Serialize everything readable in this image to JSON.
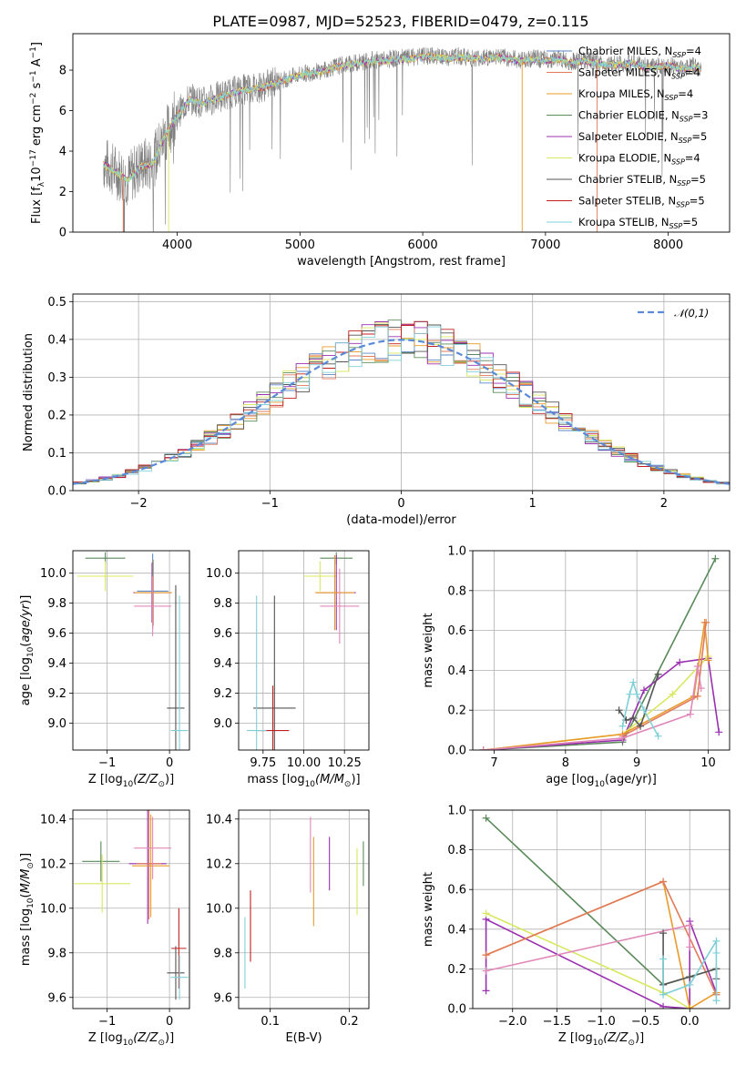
{
  "title": "PLATE=0987, MJD=52523, FIBERID=0479, z=0.115",
  "colors": {
    "chabrier_miles": "#5a8ac8",
    "salpeter_miles": "#e07a5a",
    "kroupa_miles": "#e89a2a",
    "chabrier_elodie": "#5a8a5a",
    "salpeter_elodie": "#9a30b0",
    "kroupa_elodie": "#d8e860",
    "chabrier_stelib": "#555555",
    "salpeter_stelib": "#c02020",
    "kroupa_stelib": "#80d0d8",
    "observed": "#808080",
    "gaussian": "#5a8ad8",
    "pink": "#e088b8",
    "green": "#5a8a5a"
  },
  "chart_data": [
    {
      "type": "line",
      "title": "PLATE=0987, MJD=52523, FIBERID=0479, z=0.115",
      "xlabel": "wavelength [Angstrom, rest frame]",
      "ylabel": "Flux [f_λ 10⁻¹⁷ erg cm⁻² s⁻¹ A⁻¹]",
      "xlim": [
        3150,
        8500
      ],
      "ylim": [
        0,
        9.8
      ],
      "xticks": [
        "4000",
        "5000",
        "6000",
        "7000",
        "8000"
      ],
      "yticks": [
        "0",
        "2",
        "4",
        "6",
        "8"
      ],
      "grid": false,
      "legend_position": "right",
      "legend": [
        {
          "name": "Chabrier MILES, N_SSP=4",
          "main": "Chabrier MILES, N",
          "sub": "SSP",
          "tail": "=4",
          "color": "chabrier_miles"
        },
        {
          "name": "Salpeter MILES, N_SSP=4",
          "main": "Salpeter MILES, N",
          "sub": "SSP",
          "tail": "=4",
          "color": "salpeter_miles"
        },
        {
          "name": "Kroupa MILES, N_SSP=4",
          "main": "Kroupa MILES, N",
          "sub": "SSP",
          "tail": "=4",
          "color": "kroupa_miles"
        },
        {
          "name": "Chabrier ELODIE, N_SSP=3",
          "main": "Chabrier ELODIE, N",
          "sub": "SSP",
          "tail": "=3",
          "color": "chabrier_elodie"
        },
        {
          "name": "Salpeter ELODIE, N_SSP=5",
          "main": "Salpeter ELODIE, N",
          "sub": "SSP",
          "tail": "=5",
          "color": "salpeter_elodie"
        },
        {
          "name": "Kroupa ELODIE, N_SSP=4",
          "main": "Kroupa ELODIE, N",
          "sub": "SSP",
          "tail": "=4",
          "color": "kroupa_elodie"
        },
        {
          "name": "Chabrier STELIB, N_SSP=5",
          "main": "Chabrier STELIB, N",
          "sub": "SSP",
          "tail": "=5",
          "color": "chabrier_stelib"
        },
        {
          "name": "Salpeter STELIB, N_SSP=5",
          "main": "Salpeter STELIB, N",
          "sub": "SSP",
          "tail": "=5",
          "color": "salpeter_stelib"
        },
        {
          "name": "Kroupa STELIB, N_SSP=5",
          "main": "Kroupa STELIB, N",
          "sub": "SSP",
          "tail": "=5",
          "color": "kroupa_stelib"
        }
      ],
      "observed_spectrum": {
        "x": [
          3400,
          3500,
          3600,
          3700,
          3800,
          3900,
          4000,
          4100,
          4200,
          4300,
          4400,
          4500,
          4600,
          4700,
          4800,
          4900,
          5000,
          5100,
          5200,
          5300,
          5400,
          5500,
          5600,
          5700,
          5800,
          5900,
          6000,
          6100,
          6200,
          6300,
          6400,
          6500,
          6600,
          6700,
          6800,
          6900,
          7000,
          7100,
          7200,
          7300,
          7400,
          7500,
          7600,
          7700,
          7800,
          7900,
          8000,
          8100,
          8200,
          8270
        ],
        "y": [
          3.4,
          3.0,
          2.6,
          3.3,
          3.4,
          4.8,
          5.8,
          6.6,
          6.4,
          6.6,
          6.8,
          7.0,
          7.1,
          7.2,
          7.4,
          7.6,
          7.8,
          7.9,
          8.0,
          8.2,
          8.3,
          8.4,
          8.5,
          8.5,
          8.6,
          8.6,
          8.7,
          8.7,
          8.6,
          8.7,
          8.6,
          8.6,
          8.7,
          8.6,
          8.5,
          8.6,
          8.5,
          8.6,
          8.4,
          8.5,
          8.4,
          8.3,
          8.3,
          8.4,
          8.2,
          8.2,
          8.3,
          8.1,
          8.2,
          8.1
        ]
      }
    },
    {
      "type": "line",
      "xlabel": "(data-model)/error",
      "ylabel": "Normed distribution",
      "xlim": [
        -2.5,
        2.5
      ],
      "ylim": [
        0,
        0.52
      ],
      "xticks": [
        "−2",
        "−1",
        "0",
        "1",
        "2"
      ],
      "yticks": [
        "0.0",
        "0.1",
        "0.2",
        "0.3",
        "0.4",
        "0.5"
      ],
      "grid": true,
      "legend_position": "top-right",
      "legend": [
        {
          "name": "𝒩(0,1)",
          "color": "gaussian"
        }
      ],
      "bin_width": 0.1
    },
    {
      "type": "scatter",
      "xlabel_main": "Z [log",
      "xlabel_sub": "10",
      "xlabel_tail": "(Z/Z",
      "xlabel_sun": "⊙",
      "xlabel_end": ")]",
      "ylabel": "age [log₁₀(age/yr)]",
      "xlim": [
        -1.55,
        0.32
      ],
      "ylim": [
        8.82,
        10.15
      ],
      "xticks": [
        "−1",
        "0"
      ],
      "yticks": [
        "9.0",
        "9.2",
        "9.4",
        "9.6",
        "9.8",
        "10.0"
      ],
      "grid": true,
      "points": [
        {
          "x": -1.03,
          "y": 10.1,
          "xerr": 0.32,
          "yerr": 0.04,
          "color": "chabrier_elodie"
        },
        {
          "x": -1.03,
          "y": 9.98,
          "xerr": 0.45,
          "yerr": 0.1,
          "color": "kroupa_elodie"
        },
        {
          "x": -0.28,
          "y": 9.87,
          "xerr": 0.3,
          "yerr": 0.2,
          "color": "salpeter_elodie"
        },
        {
          "x": -0.26,
          "y": 9.87,
          "xerr": 0.3,
          "yerr": 0.22,
          "color": "kroupa_miles"
        },
        {
          "x": -0.27,
          "y": 9.88,
          "xerr": 0.25,
          "yerr": 0.25,
          "color": "chabrier_miles"
        },
        {
          "x": -0.27,
          "y": 9.78,
          "xerr": 0.3,
          "yerr": 0.2,
          "color": "pink"
        },
        {
          "x": 0.1,
          "y": 9.1,
          "xerr": 0.14,
          "yerr": 0.82,
          "color": "chabrier_stelib"
        },
        {
          "x": 0.16,
          "y": 8.95,
          "xerr": 0.14,
          "yerr": 0.9,
          "color": "kroupa_stelib"
        }
      ]
    },
    {
      "type": "scatter",
      "xlabel_main": "mass [log",
      "xlabel_sub": "10",
      "xlabel_tail": "(M/M",
      "xlabel_sun": "⊙",
      "xlabel_end": ")]",
      "xlim": [
        9.6,
        10.4
      ],
      "ylim": [
        8.82,
        10.15
      ],
      "xticks": [
        "9.75",
        "10.00",
        "10.25"
      ],
      "yticks": [
        "9.0",
        "9.2",
        "9.4",
        "9.6",
        "9.8",
        "10.0"
      ],
      "grid": true,
      "points": [
        {
          "x": 10.2,
          "y": 10.1,
          "xerr": 0.1,
          "yerr": 0.04,
          "color": "chabrier_elodie"
        },
        {
          "x": 10.1,
          "y": 9.98,
          "xerr": 0.1,
          "yerr": 0.1,
          "color": "kroupa_elodie"
        },
        {
          "x": 10.2,
          "y": 9.87,
          "xerr": 0.12,
          "yerr": 0.25,
          "color": "salpeter_elodie"
        },
        {
          "x": 10.19,
          "y": 9.87,
          "xerr": 0.12,
          "yerr": 0.25,
          "color": "kroupa_miles"
        },
        {
          "x": 10.22,
          "y": 9.78,
          "xerr": 0.12,
          "yerr": 0.25,
          "color": "pink"
        },
        {
          "x": 9.82,
          "y": 9.1,
          "xerr": 0.13,
          "yerr": 0.75,
          "color": "chabrier_stelib"
        },
        {
          "x": 9.81,
          "y": 8.95,
          "xerr": 0.1,
          "yerr": 0.3,
          "color": "salpeter_stelib"
        },
        {
          "x": 9.71,
          "y": 8.95,
          "xerr": 0.06,
          "yerr": 0.9,
          "color": "kroupa_stelib"
        }
      ]
    },
    {
      "type": "line",
      "xlabel_main": "age  [log",
      "xlabel_sub": "10",
      "xlabel_tail": "(age/yr)]",
      "ylabel": "mass weight",
      "xlim": [
        6.7,
        10.3
      ],
      "ylim": [
        0,
        1.0
      ],
      "xticks": [
        "7",
        "8",
        "9",
        "10"
      ],
      "yticks": [
        "0.0",
        "0.2",
        "0.4",
        "0.6",
        "0.8",
        "1.0"
      ],
      "grid": true,
      "series": [
        {
          "color": "chabrier_elodie",
          "x": [
            6.85,
            8.8,
            10.1
          ],
          "y": [
            0.0,
            0.04,
            0.96
          ]
        },
        {
          "color": "salpeter_elodie",
          "x": [
            6.85,
            8.8,
            9.1,
            9.6,
            10.0,
            10.15
          ],
          "y": [
            0.0,
            0.05,
            0.3,
            0.44,
            0.46,
            0.09
          ]
        },
        {
          "color": "kroupa_elodie",
          "x": [
            6.85,
            8.8,
            9.5,
            10.0
          ],
          "y": [
            0.0,
            0.08,
            0.28,
            0.47
          ]
        },
        {
          "color": "kroupa_miles",
          "x": [
            6.85,
            8.8,
            9.8,
            9.95,
            10.0
          ],
          "y": [
            0.0,
            0.08,
            0.27,
            0.64,
            0.45
          ]
        },
        {
          "color": "salpeter_miles",
          "x": [
            8.8,
            9.85,
            9.97
          ],
          "y": [
            0.07,
            0.27,
            0.64
          ]
        },
        {
          "color": "pink",
          "x": [
            6.85,
            8.8,
            9.75,
            9.85,
            9.9
          ],
          "y": [
            0.0,
            0.06,
            0.18,
            0.42,
            0.31
          ]
        },
        {
          "color": "chabrier_stelib",
          "x": [
            8.75,
            8.85,
            8.95,
            9.05,
            9.3
          ],
          "y": [
            0.2,
            0.15,
            0.16,
            0.12,
            0.38
          ]
        },
        {
          "color": "kroupa_stelib",
          "x": [
            8.8,
            8.9,
            8.95,
            9.0,
            9.1,
            9.3
          ],
          "y": [
            0.12,
            0.28,
            0.34,
            0.28,
            0.2,
            0.07
          ]
        }
      ]
    },
    {
      "type": "scatter",
      "xlabel_main": "Z [log",
      "xlabel_sub": "10",
      "xlabel_tail": "(Z/Z",
      "xlabel_sun": "⊙",
      "xlabel_end": ")]",
      "ylabel": "mass [log₁₀(M/M⊙)]",
      "xlim": [
        -1.55,
        0.32
      ],
      "ylim": [
        9.55,
        10.44
      ],
      "xticks": [
        "−1",
        "0"
      ],
      "yticks": [
        "9.6",
        "9.8",
        "10.0",
        "10.2",
        "10.4"
      ],
      "grid": true,
      "points": [
        {
          "x": -1.1,
          "y": 10.21,
          "xerr": 0.3,
          "yerr": 0.09,
          "color": "chabrier_elodie"
        },
        {
          "x": -1.08,
          "y": 10.11,
          "xerr": 0.45,
          "yerr": 0.13,
          "color": "kroupa_elodie"
        },
        {
          "x": -0.35,
          "y": 10.2,
          "xerr": 0.3,
          "yerr": 0.27,
          "color": "salpeter_elodie"
        },
        {
          "x": -0.3,
          "y": 10.19,
          "xerr": 0.3,
          "yerr": 0.23,
          "color": "kroupa_miles"
        },
        {
          "x": -0.33,
          "y": 10.2,
          "xerr": 0.2,
          "yerr": 0.25,
          "color": "salpeter_miles"
        },
        {
          "x": -0.27,
          "y": 10.27,
          "xerr": 0.3,
          "yerr": 0.14,
          "color": "pink"
        },
        {
          "x": 0.1,
          "y": 9.71,
          "xerr": 0.14,
          "yerr": 0.12,
          "color": "chabrier_stelib"
        },
        {
          "x": 0.15,
          "y": 9.82,
          "xerr": 0.12,
          "yerr": 0.18,
          "color": "salpeter_stelib"
        },
        {
          "x": 0.16,
          "y": 9.69,
          "xerr": 0.14,
          "yerr": 0.1,
          "color": "kroupa_stelib"
        }
      ]
    },
    {
      "type": "scatter",
      "xlabel": "E(B-V)",
      "xlim": [
        0.06,
        0.225
      ],
      "ylim": [
        9.55,
        10.44
      ],
      "xticks": [
        "0.1",
        "0.2"
      ],
      "yticks": [
        "9.6",
        "9.8",
        "10.0",
        "10.2",
        "10.4"
      ],
      "grid": true,
      "points": [
        {
          "x": 0.068,
          "y": 9.8,
          "yerr": 0.16,
          "color": "kroupa_stelib"
        },
        {
          "x": 0.075,
          "y": 9.92,
          "yerr": 0.16,
          "color": "salpeter_stelib"
        },
        {
          "x": 0.151,
          "y": 10.24,
          "yerr": 0.17,
          "color": "pink"
        },
        {
          "x": 0.155,
          "y": 10.12,
          "yerr": 0.2,
          "color": "kroupa_miles"
        },
        {
          "x": 0.175,
          "y": 10.2,
          "yerr": 0.12,
          "color": "salpeter_elodie"
        },
        {
          "x": 0.21,
          "y": 10.12,
          "yerr": 0.15,
          "color": "kroupa_elodie"
        },
        {
          "x": 0.218,
          "y": 10.2,
          "yerr": 0.1,
          "color": "chabrier_elodie"
        }
      ]
    },
    {
      "type": "line",
      "xlabel_main": "Z [log",
      "xlabel_sub": "10",
      "xlabel_tail": "(Z/Z",
      "xlabel_sun": "⊙",
      "xlabel_end": ")]",
      "ylabel": "mass weight",
      "xlim": [
        -2.45,
        0.45
      ],
      "ylim": [
        0,
        1.0
      ],
      "xticks": [
        "−2.0",
        "−1.5",
        "−1.0",
        "−0.5",
        "0.0"
      ],
      "yticks": [
        "0.0",
        "0.2",
        "0.4",
        "0.6",
        "0.8",
        "1.0"
      ],
      "grid": true,
      "series": [
        {
          "color": "chabrier_elodie",
          "x": [
            -2.3,
            -0.3,
            0.3
          ],
          "y": [
            0.96,
            0.12,
            0.2
          ]
        },
        {
          "color": "salpeter_elodie",
          "x": [
            -2.3,
            -2.3,
            -0.3,
            0.0,
            0.0,
            0.3
          ],
          "y": [
            0.09,
            0.45,
            0.01,
            0.0,
            0.44,
            0.08
          ]
        },
        {
          "color": "kroupa_elodie",
          "x": [
            -2.3,
            -0.3,
            0.0
          ],
          "y": [
            0.48,
            0.08,
            0.0
          ]
        },
        {
          "color": "kroupa_miles",
          "x": [
            -2.3,
            -0.3,
            0.0,
            0.3
          ],
          "y": [
            0.27,
            0.64,
            0.0,
            0.08
          ]
        },
        {
          "color": "salpeter_miles",
          "x": [
            -2.3,
            -0.3,
            0.3
          ],
          "y": [
            0.27,
            0.64,
            0.07
          ]
        },
        {
          "color": "pink",
          "x": [
            -2.3,
            -0.0,
            0.0
          ],
          "y": [
            0.19,
            0.42,
            0.31
          ]
        },
        {
          "color": "chabrier_stelib",
          "x": [
            -0.3,
            -0.3,
            0.0,
            0.3,
            0.3
          ],
          "y": [
            0.38,
            0.12,
            0.16,
            0.2,
            0.15
          ]
        },
        {
          "color": "kroupa_stelib",
          "x": [
            -0.3,
            -0.3,
            0.0,
            0.3,
            0.3,
            0.3
          ],
          "y": [
            0.25,
            0.07,
            0.12,
            0.34,
            0.28,
            0.04
          ]
        }
      ]
    }
  ]
}
